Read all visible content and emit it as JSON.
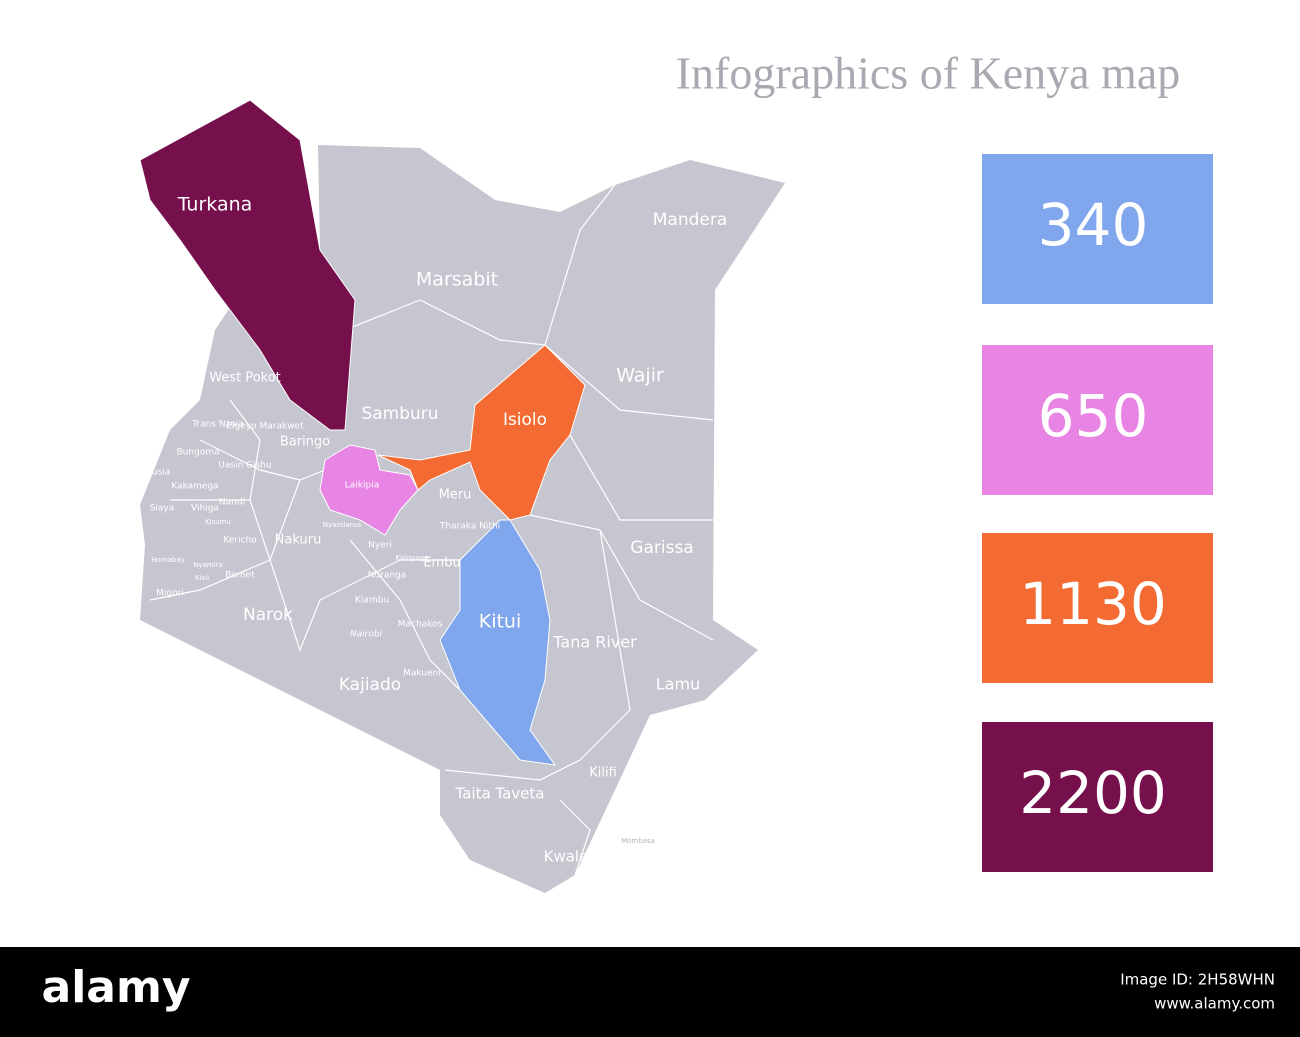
{
  "header": {
    "title": "Infographics of Kenya map"
  },
  "map": {
    "base_color": "#c5c6cf",
    "border_color": "#ffffff",
    "highlighted": [
      {
        "label": "Turkana",
        "color": "#76104d"
      },
      {
        "label": "Laikipia",
        "color": "#e884e4"
      },
      {
        "label": "Isiolo",
        "color": "#f36b32"
      },
      {
        "label": "Kitui",
        "color": "#80a7ee"
      }
    ],
    "labels": [
      "Mandera",
      "Marsabit",
      "Wajir",
      "West Pokot",
      "Samburu",
      "Trans Nzoia",
      "Elgeyo Marakwet",
      "Baringo",
      "Bungoma",
      "Uasin Gishu",
      "Busia",
      "Kakamega",
      "Nandi",
      "Meru",
      "Siaya",
      "Vihiga",
      "Nyandarua",
      "Tharaka Nithi",
      "Kisumu",
      "Kericho",
      "Nakuru",
      "Nyeri",
      "Garissa",
      "Homabay",
      "Nyamira",
      "Bomet",
      "Kirinyaga",
      "Embu",
      "Kisii",
      "Nuranga",
      "Migori",
      "Narok",
      "Kiambu",
      "Nairobi",
      "Machakos",
      "Tana River",
      "Makueni",
      "Kajiado",
      "Lamu",
      "Kilifi",
      "Taita Taveta",
      "Mombasa",
      "Kwale"
    ]
  },
  "legend": [
    {
      "value": 340,
      "color": "#80a7ee"
    },
    {
      "value": 650,
      "color": "#e884e4"
    },
    {
      "value": 1130,
      "color": "#f36b32"
    },
    {
      "value": 2200,
      "color": "#76104d"
    }
  ],
  "footer": {
    "brand": "alamy",
    "image_id": "Image ID: 2H58WHN",
    "url": "www.alamy.com"
  }
}
